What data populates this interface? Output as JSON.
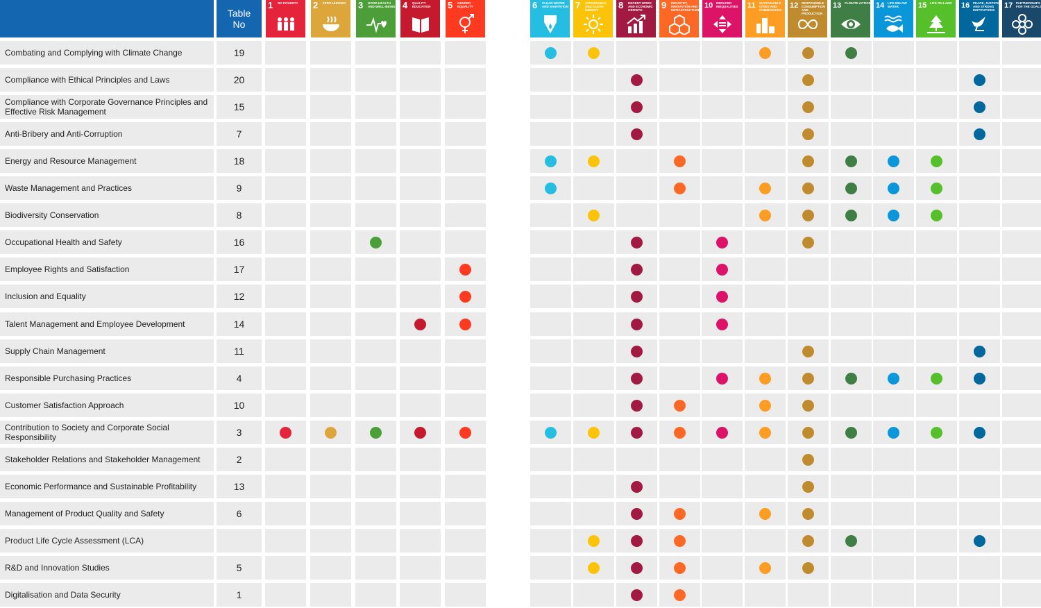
{
  "header": {
    "table_no_line1": "Table",
    "table_no_line2": "No"
  },
  "sdgs": [
    {
      "num": "1",
      "name": "No Poverty",
      "color": "#e5243b",
      "icon": "people-icon"
    },
    {
      "num": "2",
      "name": "Zero Hunger",
      "color": "#dda63a",
      "icon": "bowl-icon"
    },
    {
      "num": "3",
      "name": "Good Health and Well-Being",
      "color": "#4c9f38",
      "icon": "heartbeat-icon"
    },
    {
      "num": "4",
      "name": "Quality Education",
      "color": "#c5192d",
      "icon": "book-icon"
    },
    {
      "num": "5",
      "name": "Gender Equality",
      "color": "#ff3a21",
      "icon": "gender-icon"
    },
    {
      "num": "6",
      "name": "Clean Water and Sanitation",
      "color": "#26bde2",
      "icon": "water-drop-icon"
    },
    {
      "num": "7",
      "name": "Affordable and Clean Energy",
      "color": "#fcc30b",
      "icon": "sun-icon"
    },
    {
      "num": "8",
      "name": "Decent Work and Economic Growth",
      "color": "#a21942",
      "icon": "growth-chart-icon"
    },
    {
      "num": "9",
      "name": "Industry, Innovation and Infrastructure",
      "color": "#fd6925",
      "icon": "cubes-icon"
    },
    {
      "num": "10",
      "name": "Reduced Inequalities",
      "color": "#dd1367",
      "icon": "arrows-icon"
    },
    {
      "num": "11",
      "name": "Sustainable Cities and Communities",
      "color": "#fd9d24",
      "icon": "city-icon"
    },
    {
      "num": "12",
      "name": "Responsible Consumption and Production",
      "color": "#bf8b2e",
      "icon": "infinity-icon"
    },
    {
      "num": "13",
      "name": "Climate Action",
      "color": "#3f7e44",
      "icon": "eye-icon"
    },
    {
      "num": "14",
      "name": "Life Below Water",
      "color": "#0a97d9",
      "icon": "fish-icon"
    },
    {
      "num": "15",
      "name": "Life on Land",
      "color": "#56c02b",
      "icon": "tree-icon"
    },
    {
      "num": "16",
      "name": "Peace, Justice and Strong Institutions",
      "color": "#00689d",
      "icon": "dove-icon"
    },
    {
      "num": "17",
      "name": "Partnerships for the Goals",
      "color": "#19486a",
      "icon": "flower-icon"
    }
  ],
  "rows": [
    {
      "label": "Combating and Complying with Climate Change",
      "table_no": "19",
      "sdgs": [
        6,
        7,
        11,
        12,
        13
      ]
    },
    {
      "label": "Compliance with Ethical Principles and Laws",
      "table_no": "20",
      "sdgs": [
        8,
        12,
        16
      ]
    },
    {
      "label": "Compliance with Corporate Governance Principles and Effective Risk Management",
      "table_no": "15",
      "sdgs": [
        8,
        12,
        16
      ]
    },
    {
      "label": "Anti-Bribery and Anti-Corruption",
      "table_no": "7",
      "sdgs": [
        8,
        12,
        16
      ]
    },
    {
      "label": "Energy and Resource Management",
      "table_no": "18",
      "sdgs": [
        6,
        7,
        9,
        12,
        13,
        14,
        15
      ]
    },
    {
      "label": "Waste Management and Practices",
      "table_no": "9",
      "sdgs": [
        6,
        9,
        11,
        12,
        13,
        14,
        15
      ]
    },
    {
      "label": "Biodiversity Conservation",
      "table_no": "8",
      "sdgs": [
        7,
        11,
        12,
        13,
        14,
        15
      ]
    },
    {
      "label": "Occupational Health and Safety",
      "table_no": "16",
      "sdgs": [
        3,
        8,
        10,
        12
      ]
    },
    {
      "label": "Employee Rights and Satisfaction",
      "table_no": "17",
      "sdgs": [
        5,
        8,
        10
      ]
    },
    {
      "label": "Inclusion and Equality",
      "table_no": "12",
      "sdgs": [
        5,
        8,
        10
      ]
    },
    {
      "label": "Talent Management and Employee Development",
      "table_no": "14",
      "sdgs": [
        4,
        5,
        8,
        10
      ]
    },
    {
      "label": "Supply Chain Management",
      "table_no": "11",
      "sdgs": [
        8,
        12,
        16
      ]
    },
    {
      "label": "Responsible Purchasing Practices",
      "table_no": "4",
      "sdgs": [
        8,
        10,
        11,
        12,
        13,
        14,
        15,
        16
      ]
    },
    {
      "label": "Customer Satisfaction Approach",
      "table_no": "10",
      "sdgs": [
        8,
        9,
        11,
        12
      ]
    },
    {
      "label": "Contribution to Society and Corporate Social Responsibility",
      "table_no": "3",
      "sdgs": [
        1,
        2,
        3,
        4,
        5,
        6,
        7,
        8,
        9,
        10,
        11,
        12,
        13,
        14,
        15,
        16
      ]
    },
    {
      "label": "Stakeholder Relations and Stakeholder Management",
      "table_no": "2",
      "sdgs": [
        12
      ]
    },
    {
      "label": "Economic Performance and Sustainable Profitability",
      "table_no": "13",
      "sdgs": [
        8,
        12
      ]
    },
    {
      "label": "Management of Product Quality and Safety",
      "table_no": "6",
      "sdgs": [
        8,
        9,
        11,
        12
      ]
    },
    {
      "label": "Product Life Cycle Assessment (LCA)",
      "table_no": "",
      "sdgs": [
        7,
        8,
        9,
        12,
        13,
        16
      ]
    },
    {
      "label": "R&D and Innovation Studies",
      "table_no": "5",
      "sdgs": [
        7,
        8,
        9,
        11,
        12
      ]
    },
    {
      "label": "Digitalisation and Data Security",
      "table_no": "1",
      "sdgs": [
        8,
        9
      ]
    }
  ]
}
